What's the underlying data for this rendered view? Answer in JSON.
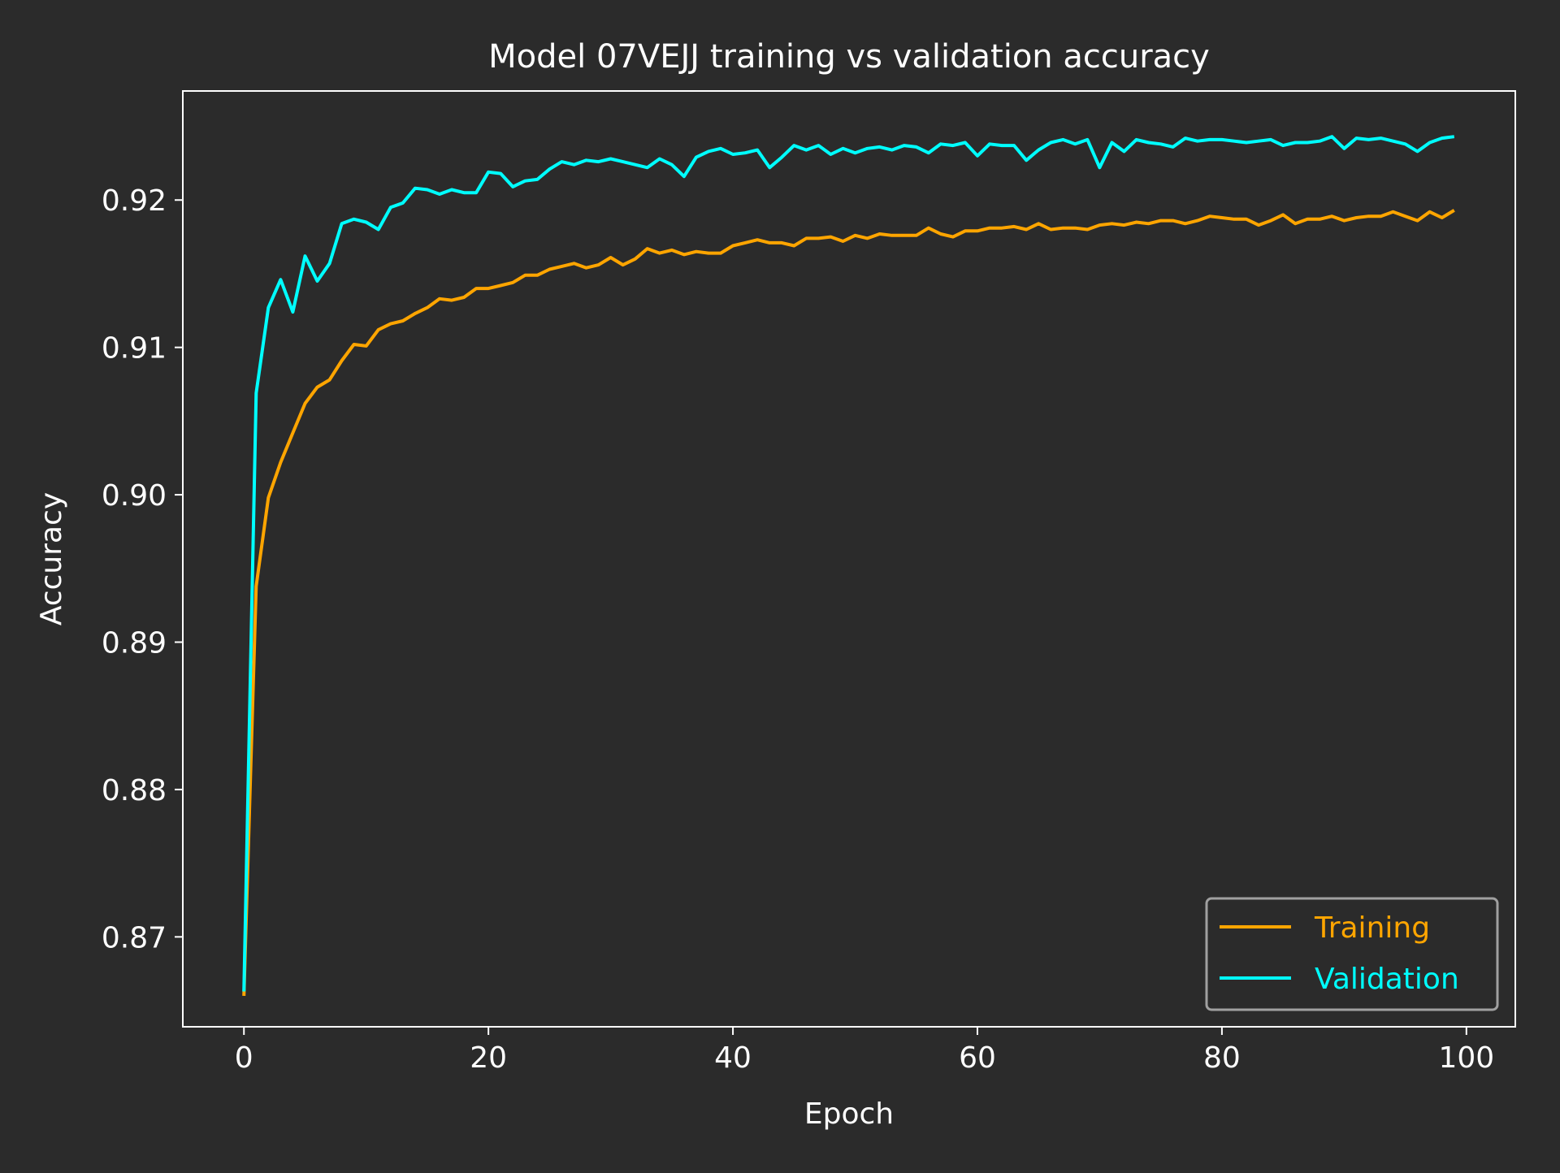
{
  "colors": {
    "background": "#2b2b2b",
    "axes": "#ffffff",
    "text": "#ffffff",
    "training": "#ffa500",
    "validation": "#00ffff",
    "legend_border": "#a0a0a0"
  },
  "chart_data": {
    "type": "line",
    "title": "Model 07VEJJ training vs validation accuracy",
    "xlabel": "Epoch",
    "ylabel": "Accuracy",
    "xlim": [
      -5,
      104
    ],
    "ylim": [
      0.8639,
      0.9274
    ],
    "xticks": [
      0,
      20,
      40,
      60,
      80,
      100
    ],
    "xtick_labels": [
      "0",
      "20",
      "40",
      "60",
      "80",
      "100"
    ],
    "yticks": [
      0.87,
      0.88,
      0.89,
      0.9,
      0.91,
      0.92
    ],
    "ytick_labels": [
      "0.87",
      "0.88",
      "0.89",
      "0.90",
      "0.91",
      "0.92"
    ],
    "grid": false,
    "legend_position": "lower-right",
    "x": [
      0,
      1,
      2,
      3,
      4,
      5,
      6,
      7,
      8,
      9,
      10,
      11,
      12,
      13,
      14,
      15,
      16,
      17,
      18,
      19,
      20,
      21,
      22,
      23,
      24,
      25,
      26,
      27,
      28,
      29,
      30,
      31,
      32,
      33,
      34,
      35,
      36,
      37,
      38,
      39,
      40,
      41,
      42,
      43,
      44,
      45,
      46,
      47,
      48,
      49,
      50,
      51,
      52,
      53,
      54,
      55,
      56,
      57,
      58,
      59,
      60,
      61,
      62,
      63,
      64,
      65,
      66,
      67,
      68,
      69,
      70,
      71,
      72,
      73,
      74,
      75,
      76,
      77,
      78,
      79,
      80,
      81,
      82,
      83,
      84,
      85,
      86,
      87,
      88,
      89,
      90,
      91,
      92,
      93,
      94,
      95,
      96,
      97,
      98,
      99
    ],
    "series": [
      {
        "name": "Training",
        "values": [
          0.866,
          0.8938,
          0.8998,
          0.9022,
          0.9042,
          0.9062,
          0.9073,
          0.9078,
          0.9091,
          0.9102,
          0.9101,
          0.9112,
          0.9116,
          0.9118,
          0.9123,
          0.9127,
          0.9133,
          0.9132,
          0.9134,
          0.914,
          0.914,
          0.9142,
          0.9144,
          0.9149,
          0.9149,
          0.9153,
          0.9155,
          0.9157,
          0.9154,
          0.9156,
          0.9161,
          0.9156,
          0.916,
          0.9167,
          0.9164,
          0.9166,
          0.9163,
          0.9165,
          0.9164,
          0.9164,
          0.9169,
          0.9171,
          0.9173,
          0.9171,
          0.9171,
          0.9169,
          0.9174,
          0.9174,
          0.9175,
          0.9172,
          0.9176,
          0.9174,
          0.9177,
          0.9176,
          0.9176,
          0.9176,
          0.9181,
          0.9177,
          0.9175,
          0.9179,
          0.9179,
          0.9181,
          0.9181,
          0.9182,
          0.918,
          0.9184,
          0.918,
          0.9181,
          0.9181,
          0.918,
          0.9183,
          0.9184,
          0.9183,
          0.9185,
          0.9184,
          0.9186,
          0.9186,
          0.9184,
          0.9186,
          0.9189,
          0.9188,
          0.9187,
          0.9187,
          0.9183,
          0.9186,
          0.919,
          0.9184,
          0.9187,
          0.9187,
          0.9189,
          0.9186,
          0.9188,
          0.9189,
          0.9189,
          0.9192,
          0.9189,
          0.9186,
          0.9192,
          0.9188,
          0.9193
        ]
      },
      {
        "name": "Validation",
        "values": [
          0.8663,
          0.9069,
          0.9127,
          0.9146,
          0.9124,
          0.9162,
          0.9145,
          0.9157,
          0.9184,
          0.9187,
          0.9185,
          0.918,
          0.9195,
          0.9198,
          0.9208,
          0.9207,
          0.9204,
          0.9207,
          0.9205,
          0.9205,
          0.9219,
          0.9218,
          0.9209,
          0.9213,
          0.9214,
          0.9221,
          0.9226,
          0.9224,
          0.9227,
          0.9226,
          0.9228,
          0.9226,
          0.9224,
          0.9222,
          0.9228,
          0.9224,
          0.9216,
          0.9229,
          0.9233,
          0.9235,
          0.9231,
          0.9232,
          0.9234,
          0.9222,
          0.9229,
          0.9237,
          0.9234,
          0.9237,
          0.9231,
          0.9235,
          0.9232,
          0.9235,
          0.9236,
          0.9234,
          0.9237,
          0.9236,
          0.9232,
          0.9238,
          0.9237,
          0.9239,
          0.923,
          0.9238,
          0.9237,
          0.9237,
          0.9227,
          0.9234,
          0.9239,
          0.9241,
          0.9238,
          0.9241,
          0.9222,
          0.9239,
          0.9233,
          0.9241,
          0.9239,
          0.9238,
          0.9236,
          0.9242,
          0.924,
          0.9241,
          0.9241,
          0.924,
          0.9239,
          0.924,
          0.9241,
          0.9237,
          0.9239,
          0.9239,
          0.924,
          0.9243,
          0.9235,
          0.9242,
          0.9241,
          0.9242,
          0.924,
          0.9238,
          0.9233,
          0.9239,
          0.9242,
          0.9243
        ]
      }
    ]
  }
}
